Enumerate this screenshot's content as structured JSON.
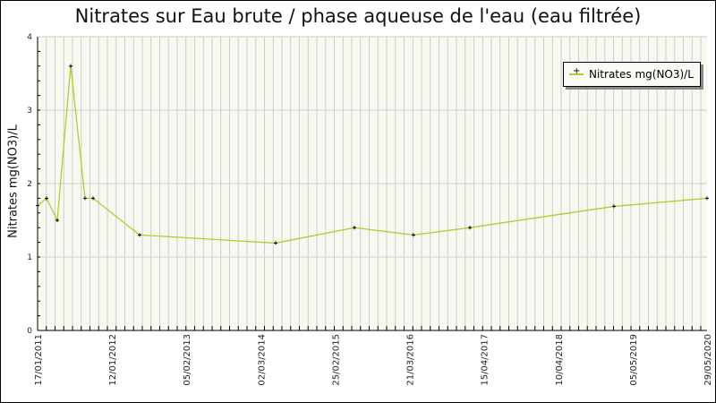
{
  "title": "Nitrates sur Eau brute / phase aqueuse de l'eau (eau filtrée)",
  "legend": {
    "label": "Nitrates mg(NO3)/L"
  },
  "colors": {
    "line": "#a8d030",
    "plot_bg": "#f8f8f0",
    "grid": "#cccccc"
  },
  "chart_data": {
    "type": "line",
    "title": "Nitrates sur Eau brute / phase aqueuse de l'eau (eau filtrée)",
    "xlabel": "",
    "ylabel": "Nitrates mg(NO3)/L",
    "ylim": [
      0,
      4
    ],
    "yticks": [
      0,
      1,
      2,
      3,
      4
    ],
    "xtick_labels": [
      "17/01/2011",
      "12/01/2012",
      "05/02/2013",
      "02/03/2014",
      "25/02/2015",
      "21/03/2016",
      "15/04/2017",
      "10/04/2018",
      "05/05/2019",
      "29/05/2020"
    ],
    "grid": true,
    "legend_position": "top-right",
    "series": [
      {
        "name": "Nitrates mg(NO3)/L",
        "x": [
          "2011-01-17",
          "2011-05",
          "2011-09",
          "2012-03",
          "2012-08",
          "2012-11",
          "2013-05",
          "2015-01",
          "2015-11",
          "2016-07",
          "2017-03",
          "2018-12",
          "2020-05-29"
        ],
        "values": [
          1.7,
          1.8,
          1.5,
          3.6,
          1.8,
          1.8,
          1.3,
          1.19,
          1.4,
          1.3,
          1.4,
          1.69,
          1.8
        ]
      }
    ]
  }
}
